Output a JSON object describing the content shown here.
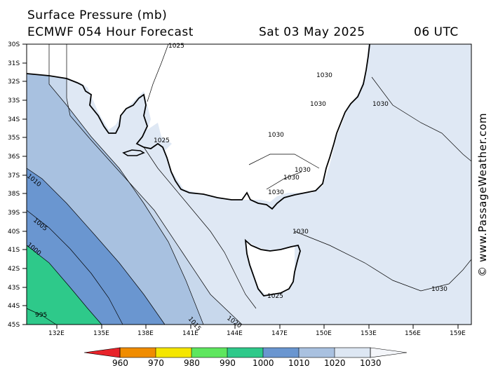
{
  "header": {
    "title": "Surface Pressure (mb)",
    "model": "ECMWF 054 Hour Forecast",
    "date": "Sat 03 May 2025",
    "time": "06 UTC"
  },
  "watermark": "© www.PassageWeather.com",
  "map": {
    "latitude_labels": [
      "30S",
      "31S",
      "32S",
      "33S",
      "34S",
      "35S",
      "36S",
      "37S",
      "38S",
      "39S",
      "40S",
      "41S",
      "42S",
      "43S",
      "44S",
      "45S"
    ],
    "longitude_labels": [
      "132E",
      "135E",
      "138E",
      "141E",
      "144E",
      "147E",
      "150E",
      "153E",
      "156E",
      "159E"
    ],
    "isobar_labels": {
      "l1025_top": "1025",
      "l1030_a": "1030",
      "l1030_b": "1030",
      "l1030_c": "1030",
      "l1030_d": "1030",
      "l1025_gulf": "1025",
      "l1030_e": "1030",
      "l1030_f": "1030",
      "l1030_g": "1030",
      "l1030_h": "1030",
      "l1030_i": "1030",
      "l1025_tas": "1025",
      "l1020": "1020",
      "l1015": "1015",
      "l1010": "1010",
      "l1005": "1005",
      "l1000": "1000",
      "l995": "995"
    }
  },
  "scale": {
    "labels": [
      "960",
      "970",
      "980",
      "990",
      "1000",
      "1010",
      "1020",
      "1030"
    ],
    "colors": [
      "#e8232a",
      "#f08c00",
      "#f5e600",
      "#5ee65e",
      "#2ec98a",
      "#6a96d0",
      "#a9c1e0",
      "#dde7f3"
    ]
  }
}
